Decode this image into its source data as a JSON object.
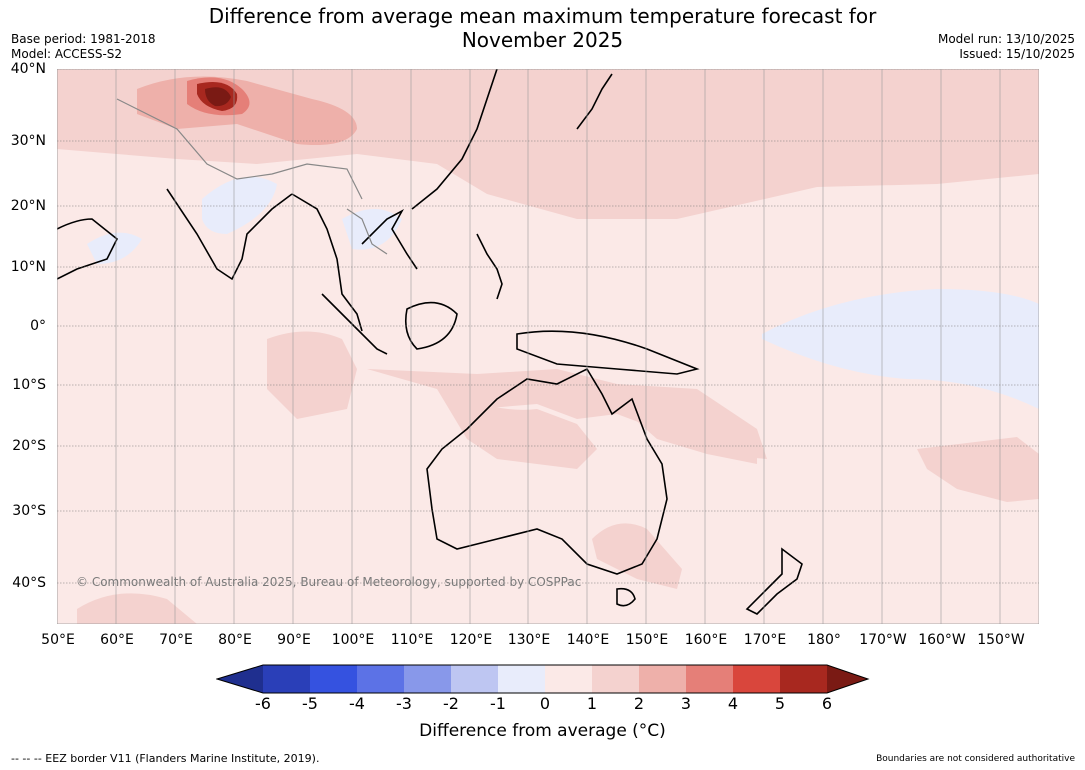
{
  "header": {
    "title_line1": "Difference from average mean maximum temperature forecast for",
    "title_line2": "November 2025",
    "base_period": "Base period: 1981-2018",
    "model": "Model: ACCESS-S2",
    "model_run": "Model run: 13/10/2025",
    "issued": "Issued: 15/10/2025"
  },
  "map": {
    "lat_labels": [
      "40°N",
      "30°N",
      "20°N",
      "10°N",
      "0°",
      "10°S",
      "20°S",
      "30°S",
      "40°S"
    ],
    "lon_labels": [
      "50°E",
      "60°E",
      "70°E",
      "80°E",
      "90°E",
      "100°E",
      "110°E",
      "120°E",
      "130°E",
      "140°E",
      "150°E",
      "160°E",
      "170°E",
      "180°",
      "170°W",
      "160°W",
      "150°W"
    ],
    "copyright": "© Commonwealth of Australia 2025, Bureau of Meteorology, supported by COSPPac",
    "background_color": "#fbe9e7"
  },
  "colorbar": {
    "ticks": [
      "-6",
      "-5",
      "-4",
      "-3",
      "-2",
      "-1",
      "0",
      "1",
      "2",
      "3",
      "4",
      "5",
      "6"
    ],
    "colors": [
      "#1f2f8f",
      "#2a3fb8",
      "#3552e0",
      "#5c72e6",
      "#8898ea",
      "#bec6f2",
      "#e8ecfb",
      "#fbe9e7",
      "#f4d2cf",
      "#eeb0aa",
      "#e57f78",
      "#d9463c",
      "#a8281f",
      "#7a1a14"
    ],
    "label": "Difference from average (°C)"
  },
  "footer": {
    "eez_legend": "-- -- -- EEZ border V11 (Flanders Marine Institute, 2019).",
    "boundaries_note": "Boundaries are not considered authoritative"
  }
}
